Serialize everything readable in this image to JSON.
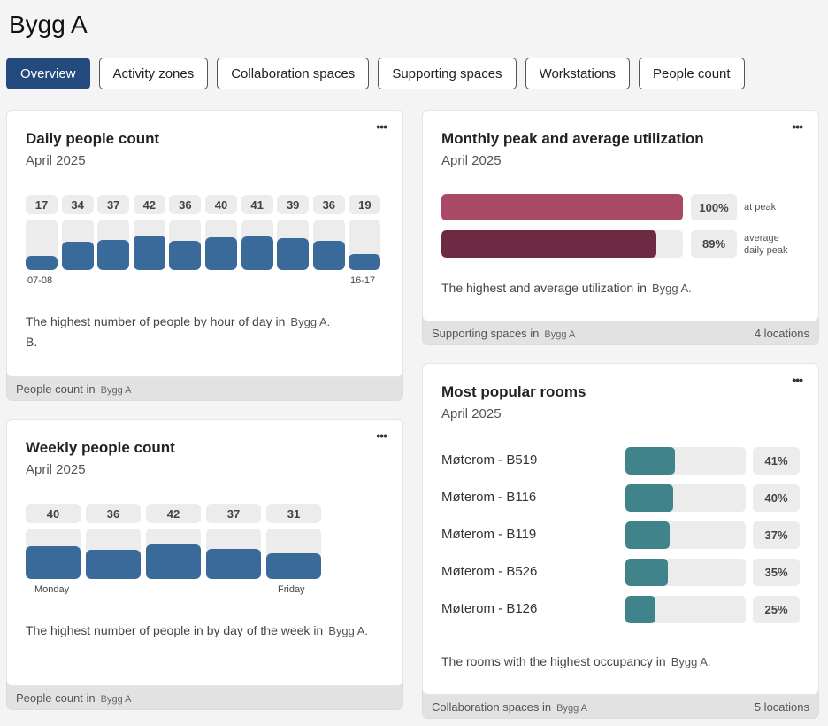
{
  "page": {
    "title": "Bygg A"
  },
  "tabs": [
    {
      "label": "Overview",
      "active": true
    },
    {
      "label": "Activity zones"
    },
    {
      "label": "Collaboration spaces"
    },
    {
      "label": "Supporting spaces"
    },
    {
      "label": "Workstations"
    },
    {
      "label": "People count"
    }
  ],
  "daily": {
    "title": "Daily people count",
    "subtitle": "April 2025",
    "more": "•••",
    "values": [
      17,
      34,
      37,
      42,
      36,
      40,
      41,
      39,
      36,
      19
    ],
    "max": 42,
    "axis_first": "07-08",
    "axis_last": "16-17",
    "desc": "The highest number of people by hour of day in",
    "desc_loc": "Bygg A.",
    "desc_extra": "B.",
    "footer": "People count in",
    "footer_loc": "Bygg A"
  },
  "weekly": {
    "title": "Weekly people count",
    "subtitle": "April 2025",
    "more": "•••",
    "values": [
      40,
      36,
      42,
      37,
      31
    ],
    "max": 42,
    "axis_first": "Monday",
    "axis_last": "Friday",
    "desc": "The highest number of people in by day of the week in",
    "desc_loc": "Bygg A.",
    "footer": "People count in",
    "footer_loc": "Bygg A"
  },
  "monthly": {
    "title": "Monthly peak and average utilization",
    "subtitle": "April 2025",
    "more": "•••",
    "bars": [
      {
        "value": 100,
        "pct": "100%",
        "label_1": "at peak",
        "label_2": "",
        "color": "#a84a66"
      },
      {
        "value": 89,
        "pct": "89%",
        "label_1": "average",
        "label_2": "daily peak",
        "color": "#6e2a42"
      }
    ],
    "desc": "The highest and average utilization in",
    "desc_loc": "Bygg A.",
    "footer": "Supporting spaces in",
    "footer_loc": "Bygg A",
    "footer_right": "4 locations"
  },
  "rooms": {
    "title": "Most popular rooms",
    "subtitle": "April 2025",
    "more": "•••",
    "color": "#40838a",
    "items": [
      {
        "name": "Møterom - B519",
        "value": 41,
        "pct": "41%"
      },
      {
        "name": "Møterom - B116",
        "value": 40,
        "pct": "40%"
      },
      {
        "name": "Møterom - B119",
        "value": 37,
        "pct": "37%"
      },
      {
        "name": "Møterom - B526",
        "value": 35,
        "pct": "35%"
      },
      {
        "name": "Møterom - B126",
        "value": 25,
        "pct": "25%"
      }
    ],
    "desc": "The rooms with the highest occupancy in",
    "desc_loc": "Bygg A.",
    "footer": "Collaboration spaces in",
    "footer_loc": "Bygg A",
    "footer_right": "5 locations"
  }
}
